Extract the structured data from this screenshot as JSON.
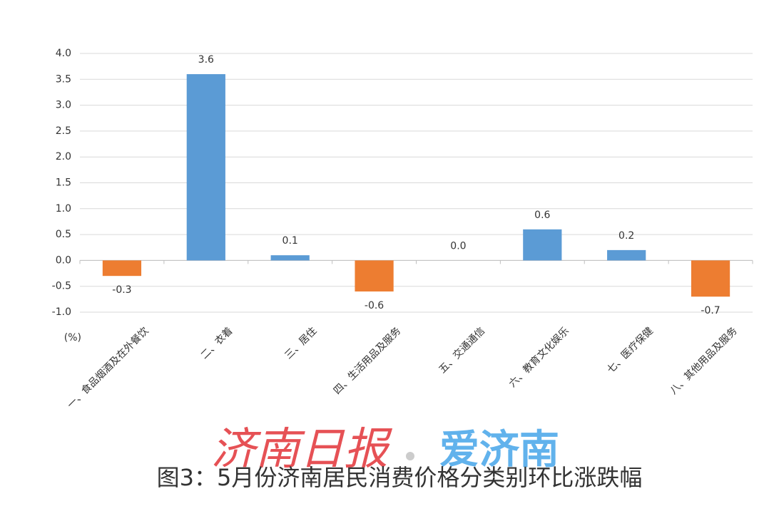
{
  "chart_data": {
    "type": "bar",
    "title": "图3：5月份济南居民消费价格分类别环比涨跌幅",
    "y_unit": "(%)",
    "watermark": [
      "济南日报",
      "爱济南"
    ],
    "categories": [
      "一、食品烟酒及在外餐饮",
      "二、衣着",
      "三、居住",
      "四、生活用品及服务",
      "五、交通通信",
      "六、教育文化娱乐",
      "七、医疗保健",
      "八、其他用品及服务"
    ],
    "values": [
      -0.3,
      3.6,
      0.1,
      -0.6,
      0.0,
      0.6,
      0.2,
      -0.7
    ],
    "value_labels": [
      "-0.3",
      "3.6",
      "0.1",
      "-0.6",
      "0.0",
      "0.6",
      "0.2",
      "-0.7"
    ],
    "colors": [
      "#ed7d31",
      "#5b9bd5",
      "#5b9bd5",
      "#ed7d31",
      "#5b9bd5",
      "#5b9bd5",
      "#5b9bd5",
      "#ed7d31"
    ],
    "ylim": [
      -1,
      4
    ],
    "yticks": [
      {
        "value": 4,
        "label": "4.0"
      },
      3.5,
      {
        "value": 3,
        "label": "3.0"
      },
      2.5,
      {
        "value": 2,
        "label": "2.0"
      },
      1.5,
      {
        "value": 1,
        "label": "1.0"
      },
      0.5,
      {
        "value": 0,
        "label": "0.0"
      },
      -0.5,
      {
        "value": -1,
        "label": "-1.0"
      }
    ],
    "grid": true
  }
}
